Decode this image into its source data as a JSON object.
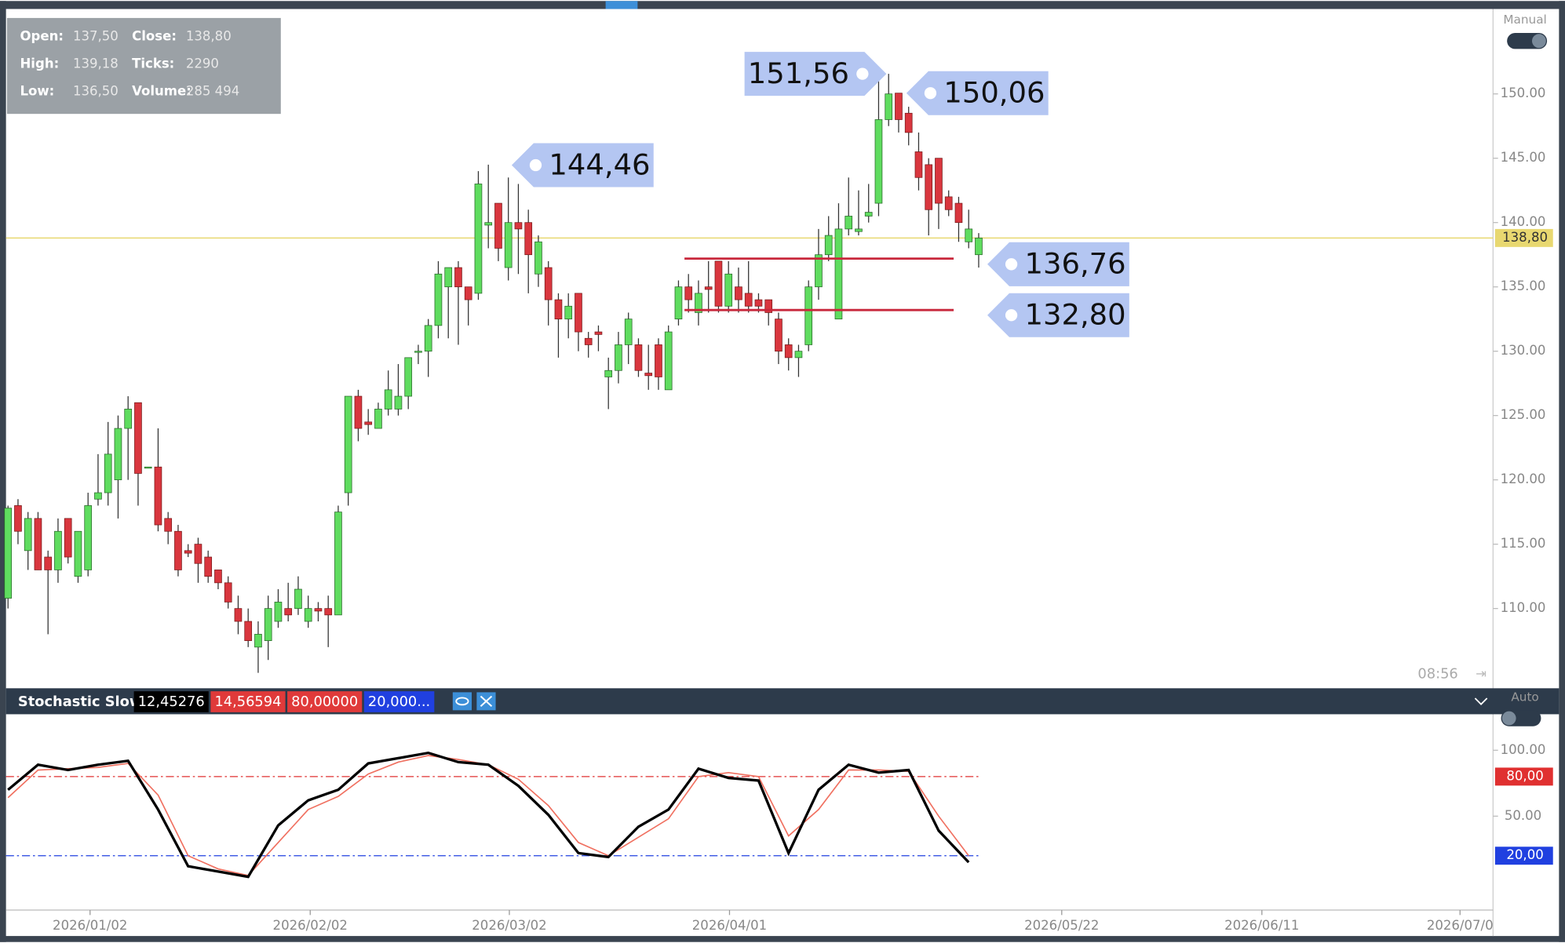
{
  "window": {
    "mode_top": "Manual",
    "mode_bottom": "Auto",
    "time": "08:56"
  },
  "info_box": {
    "rows": [
      [
        "Open:",
        "137,50",
        "Close:",
        "138,80"
      ],
      [
        "High:",
        "139,18",
        "Ticks:",
        "2290"
      ],
      [
        "Low:",
        "136,50",
        "Volume:",
        "285 494"
      ]
    ]
  },
  "chart_data": [
    {
      "type": "candlestick",
      "up_color": "#5fdc5f",
      "down_color": "#d9363e",
      "open": [
        110.8,
        118,
        114.5,
        117,
        114,
        113,
        117,
        112.5,
        113,
        118.5,
        119,
        120,
        124,
        126,
        121,
        121,
        117,
        116,
        114.5,
        115,
        114,
        113,
        112,
        110,
        109,
        107,
        107.5,
        109,
        110,
        110,
        109,
        110,
        110,
        109.5,
        119,
        126.5,
        124.5,
        124,
        125.5,
        125.5,
        126.5,
        130,
        130,
        132,
        135,
        136.5,
        135,
        134.5,
        139.8,
        141.5,
        136.5,
        140,
        140,
        136,
        136.5,
        134,
        132.5,
        134.5,
        131,
        131.5,
        128,
        128.5,
        130.5,
        130.5,
        128.3,
        130.5,
        127,
        132.5,
        135,
        133,
        135,
        137,
        133.5,
        135,
        134.5,
        134,
        134,
        132.5,
        130.5,
        129.5,
        130.5,
        135,
        137.5,
        132.5,
        139.5,
        139.3,
        140.5,
        141.5,
        148,
        150.06,
        148.5,
        145.5,
        144.5,
        145,
        142,
        141.5,
        138.5,
        137.5
      ],
      "high": [
        118,
        118.5,
        117.5,
        117.5,
        114.5,
        117,
        117,
        116,
        119,
        122,
        124.5,
        125,
        126.5,
        126,
        121,
        124,
        117.5,
        116.5,
        115,
        115.5,
        114.5,
        113,
        112.5,
        111,
        110,
        109,
        111,
        111.5,
        112,
        112.5,
        111,
        110.5,
        111,
        118,
        126.5,
        127,
        125.5,
        126,
        128.5,
        129,
        129.5,
        130.5,
        132.5,
        137,
        136.5,
        137,
        135,
        144,
        144.5,
        141.5,
        143.5,
        143,
        141,
        139,
        137,
        134.5,
        134.5,
        134.5,
        131.5,
        132,
        129.5,
        131.5,
        133,
        131,
        130.5,
        131,
        132,
        135.5,
        136,
        135.5,
        137,
        137,
        137,
        136.5,
        137,
        134.5,
        134,
        133,
        131,
        130.5,
        135.5,
        139.5,
        140.5,
        141.5,
        143.5,
        142.5,
        143,
        151,
        151.56,
        150.06,
        149,
        147,
        145,
        145,
        142.5,
        142,
        141,
        139.18
      ],
      "low": [
        110,
        115,
        113,
        113,
        108,
        112,
        113.5,
        112,
        112.5,
        118,
        118,
        117,
        120,
        118,
        121,
        116,
        115,
        112.5,
        114,
        112,
        112,
        111.5,
        110,
        108,
        107,
        105,
        106,
        108.5,
        109,
        109.5,
        108.5,
        109,
        107,
        109.5,
        118,
        123,
        123.5,
        124,
        125,
        125,
        125.5,
        129,
        128,
        131,
        131,
        130.5,
        132,
        134,
        138,
        137,
        135.5,
        136,
        134.5,
        135,
        132,
        129.5,
        131,
        130,
        129.5,
        130,
        125.5,
        127.5,
        129,
        128,
        127,
        127,
        127,
        132,
        133,
        132,
        133,
        133,
        133,
        133,
        133,
        133,
        132,
        129,
        128.5,
        128,
        130,
        134,
        137,
        132.5,
        139,
        139,
        140,
        140.5,
        147.5,
        147,
        146,
        142.5,
        139,
        139.5,
        140.5,
        138.5,
        138,
        136.5
      ],
      "close": [
        117.8,
        116,
        117,
        113,
        113,
        116,
        114,
        116,
        118,
        119,
        122,
        124,
        125.5,
        120.5,
        121,
        116.5,
        116,
        113,
        114.3,
        113.5,
        112.5,
        112,
        110.5,
        109,
        107.5,
        108,
        110,
        110.5,
        109.5,
        111.5,
        110,
        109.8,
        109.5,
        117.5,
        126.5,
        124,
        124.3,
        125.5,
        127,
        126.5,
        129.5,
        130,
        132,
        136,
        136.5,
        135,
        134,
        143,
        140,
        138,
        140,
        139.5,
        137.5,
        138.5,
        134,
        132.5,
        133.5,
        131.5,
        130.5,
        131.3,
        128.5,
        130.5,
        132.5,
        128.5,
        128.1,
        128,
        131.5,
        135,
        134,
        134.5,
        134.8,
        133.5,
        136,
        134,
        133.5,
        133.5,
        133,
        130,
        129.5,
        130,
        135,
        137.5,
        139,
        139.5,
        140.5,
        139.5,
        140.8,
        148,
        150,
        148,
        147,
        143.5,
        141,
        141.5,
        141,
        140,
        139.5,
        138.8
      ],
      "xlim": [
        -0.2,
        148.4
      ],
      "ylim": [
        103.8,
        156.6
      ],
      "yticks": [
        {
          "value": 150,
          "label": "150.00"
        },
        {
          "value": 145,
          "label": "145.00"
        },
        {
          "value": 140,
          "label": "140.00"
        },
        {
          "value": 135,
          "label": "135.00"
        },
        {
          "value": 130,
          "label": "130.00"
        },
        {
          "value": 125,
          "label": "125.00"
        },
        {
          "value": 120,
          "label": "120.00"
        },
        {
          "value": 115,
          "label": "115.00"
        },
        {
          "value": 110,
          "label": "110.00"
        }
      ],
      "xticks": [
        {
          "value": 8.2,
          "label": "2026/01/02"
        },
        {
          "value": 30.2,
          "label": "2026/02/02"
        },
        {
          "value": 50.1,
          "label": "2026/03/02"
        },
        {
          "value": 72.1,
          "label": "2026/04/01"
        },
        {
          "value": 105.3,
          "label": "2026/05/22"
        },
        {
          "value": 125.3,
          "label": "2026/06/11"
        },
        {
          "value": 145.1,
          "label": "2026/07/0"
        }
      ],
      "last_price": {
        "value": 138.8,
        "label": "138,80",
        "color": "#e8d870"
      },
      "hline_color": "#c8283c",
      "hlines": [
        {
          "value": 137.2
        },
        {
          "value": 133.2
        }
      ],
      "annotations": [
        {
          "value": 151.56,
          "label": "151,56"
        },
        {
          "value": 150.06,
          "label": "150,06"
        },
        {
          "value": 144.46,
          "label": "144,46"
        },
        {
          "value": 136.76,
          "label": "136,76"
        },
        {
          "value": 132.8,
          "label": "132,80"
        }
      ]
    },
    {
      "type": "line",
      "title": "Stochastic Slow",
      "header_values": [
        "12,45276",
        "14,56594",
        "80,00000",
        "20,000..."
      ],
      "x": [
        0,
        3,
        6,
        9,
        12,
        15,
        18,
        21,
        24,
        27,
        30,
        33,
        36,
        39,
        42,
        45,
        48,
        51,
        54,
        57,
        60,
        63,
        66,
        69,
        72,
        75,
        78,
        81,
        84,
        87,
        90,
        93,
        96
      ],
      "series": [
        {
          "color": "#000000",
          "values": [
            70,
            89,
            85,
            89,
            92,
            55,
            12,
            8,
            4,
            43,
            62,
            70,
            90,
            94,
            98,
            91,
            89,
            73,
            51,
            22,
            19,
            42,
            55,
            86,
            79,
            77,
            22,
            70,
            89,
            83,
            85,
            39,
            15
          ]
        },
        {
          "color": "#f07060",
          "values": [
            64,
            85,
            86,
            87,
            90,
            66,
            20,
            10,
            5,
            30,
            55,
            65,
            82,
            91,
            96,
            93,
            89,
            78,
            58,
            30,
            20,
            34,
            48,
            80,
            83,
            80,
            35,
            55,
            85,
            85,
            84,
            50,
            20
          ]
        }
      ],
      "xlim": [
        -0.2,
        148.4
      ],
      "ylim": [
        -21.2,
        127.3
      ],
      "yticks": [
        {
          "value": 100,
          "label": "100.00"
        },
        {
          "value": 50,
          "label": "50.00"
        }
      ],
      "levels": [
        {
          "value": 80,
          "label": "80,00",
          "color": "#e03030"
        },
        {
          "value": 20,
          "label": "20,00",
          "color": "#2040e0"
        }
      ]
    }
  ]
}
